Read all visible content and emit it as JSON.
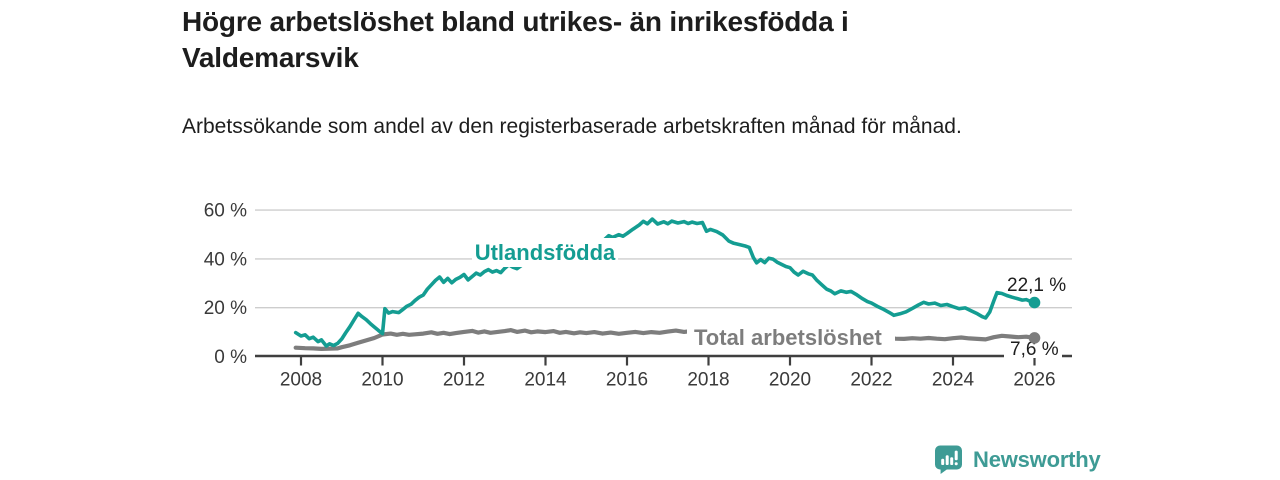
{
  "header": {
    "title": "Högre arbetslöshet bland utrikes- än inrikesfödda i Valdemarsvik",
    "subtitle": "Arbetssökande som andel av den registerbaserade arbetskraften månad för månad."
  },
  "footer": {
    "brand": "Newsworthy"
  },
  "colors": {
    "line_teal": "#149D92",
    "line_gray": "#7D7D7D",
    "grid": "#CDCDCD",
    "axis": "#3F3F3F",
    "tick_text": "#3A3A3A",
    "value_text": "#1D1D1D",
    "logo_teal": "#3E9B95",
    "background": "#FFFFFF"
  },
  "chart_data": {
    "type": "line",
    "title": "Högre arbetslöshet bland utrikes- än inrikesfödda i Valdemarsvik",
    "subtitle": "Arbetssökande som andel av den registerbaserade arbetskraften månad för månad.",
    "xlabel": "",
    "ylabel": "",
    "grid": "horizontal",
    "legend_position": "inline",
    "x_axis": {
      "ticks": [
        "2008",
        "2010",
        "2012",
        "2014",
        "2016",
        "2018",
        "2020",
        "2022",
        "2024",
        "2026"
      ],
      "range": [
        2006.9,
        2026.9
      ]
    },
    "y_axis": {
      "range": [
        0,
        60
      ],
      "unit": "%",
      "ticks": [
        {
          "value": 0,
          "label": "0 %"
        },
        {
          "value": 20,
          "label": "20 %"
        },
        {
          "value": 40,
          "label": "40 %"
        },
        {
          "value": 60,
          "label": "60 %"
        }
      ]
    },
    "series": [
      {
        "id": "utlandsfodda",
        "name": "Utlandsfödda",
        "color": "#149D92",
        "end_label": "22,1 %",
        "end_value": 22.1,
        "points": [
          [
            2007.87,
            9.8
          ],
          [
            2008.0,
            8.4
          ],
          [
            2008.1,
            8.9
          ],
          [
            2008.2,
            7.3
          ],
          [
            2008.3,
            7.9
          ],
          [
            2008.42,
            6.1
          ],
          [
            2008.5,
            6.8
          ],
          [
            2008.62,
            4.3
          ],
          [
            2008.7,
            5.2
          ],
          [
            2008.8,
            4.5
          ],
          [
            2008.9,
            5.4
          ],
          [
            2009.0,
            7.2
          ],
          [
            2009.1,
            9.8
          ],
          [
            2009.2,
            12.2
          ],
          [
            2009.3,
            15.0
          ],
          [
            2009.4,
            17.7
          ],
          [
            2009.5,
            16.3
          ],
          [
            2009.6,
            15.1
          ],
          [
            2009.7,
            13.5
          ],
          [
            2009.8,
            12.1
          ],
          [
            2009.9,
            10.7
          ],
          [
            2010.0,
            9.4
          ],
          [
            2010.06,
            19.6
          ],
          [
            2010.15,
            17.8
          ],
          [
            2010.25,
            18.4
          ],
          [
            2010.4,
            18.0
          ],
          [
            2010.5,
            19.3
          ],
          [
            2010.6,
            20.6
          ],
          [
            2010.7,
            21.4
          ],
          [
            2010.8,
            23.0
          ],
          [
            2010.9,
            24.3
          ],
          [
            2011.0,
            25.2
          ],
          [
            2011.1,
            27.6
          ],
          [
            2011.2,
            29.4
          ],
          [
            2011.3,
            31.2
          ],
          [
            2011.4,
            32.6
          ],
          [
            2011.5,
            30.4
          ],
          [
            2011.6,
            32.0
          ],
          [
            2011.7,
            30.2
          ],
          [
            2011.8,
            31.6
          ],
          [
            2011.9,
            32.4
          ],
          [
            2012.0,
            33.6
          ],
          [
            2012.1,
            31.4
          ],
          [
            2012.2,
            32.8
          ],
          [
            2012.3,
            34.2
          ],
          [
            2012.4,
            33.4
          ],
          [
            2012.5,
            34.8
          ],
          [
            2012.6,
            35.6
          ],
          [
            2012.7,
            34.6
          ],
          [
            2012.8,
            35.2
          ],
          [
            2012.9,
            34.4
          ],
          [
            2013.0,
            36.2
          ],
          [
            2013.1,
            37.6
          ],
          [
            2013.2,
            36.6
          ],
          [
            2013.3,
            36.0
          ],
          [
            2013.45,
            37.8
          ],
          [
            2013.6,
            38.5
          ],
          [
            2013.8,
            39.3
          ],
          [
            2014.0,
            40.3
          ],
          [
            2014.25,
            41.7
          ],
          [
            2014.5,
            43.1
          ],
          [
            2014.75,
            44.3
          ],
          [
            2015.0,
            45.3
          ],
          [
            2015.2,
            46.3
          ],
          [
            2015.4,
            47.2
          ],
          [
            2015.55,
            49.5
          ],
          [
            2015.65,
            48.8
          ],
          [
            2015.8,
            49.9
          ],
          [
            2015.9,
            49.3
          ],
          [
            2016.0,
            50.4
          ],
          [
            2016.15,
            52.2
          ],
          [
            2016.3,
            53.9
          ],
          [
            2016.4,
            55.4
          ],
          [
            2016.5,
            54.4
          ],
          [
            2016.62,
            56.3
          ],
          [
            2016.75,
            54.3
          ],
          [
            2016.9,
            55.2
          ],
          [
            2017.0,
            54.4
          ],
          [
            2017.1,
            55.5
          ],
          [
            2017.25,
            54.7
          ],
          [
            2017.4,
            55.3
          ],
          [
            2017.5,
            54.5
          ],
          [
            2017.6,
            55.1
          ],
          [
            2017.72,
            54.5
          ],
          [
            2017.85,
            54.9
          ],
          [
            2017.95,
            51.3
          ],
          [
            2018.05,
            52.1
          ],
          [
            2018.2,
            51.2
          ],
          [
            2018.35,
            49.8
          ],
          [
            2018.5,
            47.3
          ],
          [
            2018.62,
            46.4
          ],
          [
            2018.75,
            45.9
          ],
          [
            2018.9,
            45.3
          ],
          [
            2019.0,
            44.7
          ],
          [
            2019.1,
            40.6
          ],
          [
            2019.18,
            38.4
          ],
          [
            2019.28,
            39.7
          ],
          [
            2019.38,
            38.5
          ],
          [
            2019.48,
            40.3
          ],
          [
            2019.58,
            39.9
          ],
          [
            2019.68,
            38.7
          ],
          [
            2019.8,
            37.7
          ],
          [
            2019.9,
            36.9
          ],
          [
            2020.0,
            36.4
          ],
          [
            2020.1,
            34.6
          ],
          [
            2020.2,
            33.4
          ],
          [
            2020.32,
            34.9
          ],
          [
            2020.45,
            33.9
          ],
          [
            2020.55,
            33.4
          ],
          [
            2020.65,
            31.4
          ],
          [
            2020.78,
            29.4
          ],
          [
            2020.9,
            27.6
          ],
          [
            2021.0,
            26.9
          ],
          [
            2021.1,
            25.7
          ],
          [
            2021.25,
            26.9
          ],
          [
            2021.38,
            26.3
          ],
          [
            2021.5,
            26.7
          ],
          [
            2021.62,
            25.5
          ],
          [
            2021.78,
            23.7
          ],
          [
            2021.9,
            22.5
          ],
          [
            2022.0,
            21.9
          ],
          [
            2022.15,
            20.5
          ],
          [
            2022.3,
            19.3
          ],
          [
            2022.45,
            17.9
          ],
          [
            2022.55,
            16.9
          ],
          [
            2022.7,
            17.5
          ],
          [
            2022.85,
            18.3
          ],
          [
            2023.0,
            19.7
          ],
          [
            2023.15,
            21.1
          ],
          [
            2023.28,
            22.2
          ],
          [
            2023.4,
            21.5
          ],
          [
            2023.55,
            21.9
          ],
          [
            2023.7,
            20.9
          ],
          [
            2023.85,
            21.3
          ],
          [
            2024.0,
            20.4
          ],
          [
            2024.15,
            19.6
          ],
          [
            2024.3,
            19.9
          ],
          [
            2024.45,
            18.7
          ],
          [
            2024.6,
            17.5
          ],
          [
            2024.72,
            16.3
          ],
          [
            2024.8,
            15.8
          ],
          [
            2024.9,
            18.2
          ],
          [
            2025.0,
            22.8
          ],
          [
            2025.08,
            26.2
          ],
          [
            2025.2,
            25.8
          ],
          [
            2025.32,
            25.0
          ],
          [
            2025.45,
            24.3
          ],
          [
            2025.6,
            23.6
          ],
          [
            2025.7,
            23.1
          ],
          [
            2025.8,
            23.3
          ],
          [
            2025.9,
            22.6
          ],
          [
            2026.0,
            22.1
          ]
        ]
      },
      {
        "id": "total-arbetsloshet",
        "name": "Total arbetslöshet",
        "color": "#7D7D7D",
        "end_label": "7,6 %",
        "end_value": 7.6,
        "points": [
          [
            2007.87,
            3.6
          ],
          [
            2008.1,
            3.4
          ],
          [
            2008.3,
            3.3
          ],
          [
            2008.5,
            3.1
          ],
          [
            2008.7,
            3.2
          ],
          [
            2008.9,
            3.3
          ],
          [
            2009.0,
            3.8
          ],
          [
            2009.2,
            4.6
          ],
          [
            2009.4,
            5.6
          ],
          [
            2009.6,
            6.6
          ],
          [
            2009.8,
            7.6
          ],
          [
            2010.0,
            9.0
          ],
          [
            2010.2,
            9.4
          ],
          [
            2010.35,
            8.9
          ],
          [
            2010.5,
            9.3
          ],
          [
            2010.65,
            8.9
          ],
          [
            2010.8,
            9.1
          ],
          [
            2011.0,
            9.4
          ],
          [
            2011.2,
            9.9
          ],
          [
            2011.35,
            9.3
          ],
          [
            2011.5,
            9.7
          ],
          [
            2011.65,
            9.2
          ],
          [
            2011.8,
            9.6
          ],
          [
            2012.0,
            10.1
          ],
          [
            2012.2,
            10.5
          ],
          [
            2012.35,
            9.8
          ],
          [
            2012.5,
            10.3
          ],
          [
            2012.65,
            9.7
          ],
          [
            2012.8,
            10.0
          ],
          [
            2013.0,
            10.4
          ],
          [
            2013.15,
            10.8
          ],
          [
            2013.3,
            10.1
          ],
          [
            2013.5,
            10.6
          ],
          [
            2013.65,
            9.9
          ],
          [
            2013.8,
            10.3
          ],
          [
            2014.0,
            10.0
          ],
          [
            2014.2,
            10.4
          ],
          [
            2014.35,
            9.7
          ],
          [
            2014.5,
            10.1
          ],
          [
            2014.7,
            9.5
          ],
          [
            2014.85,
            9.9
          ],
          [
            2015.0,
            9.6
          ],
          [
            2015.2,
            10.0
          ],
          [
            2015.4,
            9.4
          ],
          [
            2015.6,
            9.8
          ],
          [
            2015.8,
            9.3
          ],
          [
            2016.0,
            9.7
          ],
          [
            2016.2,
            10.1
          ],
          [
            2016.4,
            9.6
          ],
          [
            2016.6,
            10.0
          ],
          [
            2016.8,
            9.7
          ],
          [
            2017.0,
            10.2
          ],
          [
            2017.2,
            10.6
          ],
          [
            2017.4,
            10.1
          ],
          [
            2017.6,
            10.5
          ],
          [
            2017.8,
            10.0
          ],
          [
            2018.0,
            10.4
          ],
          [
            2018.2,
            9.8
          ],
          [
            2018.4,
            10.2
          ],
          [
            2018.6,
            9.6
          ],
          [
            2018.8,
            9.3
          ],
          [
            2019.0,
            9.7
          ],
          [
            2019.2,
            10.0
          ],
          [
            2019.4,
            9.5
          ],
          [
            2019.6,
            9.8
          ],
          [
            2019.8,
            9.2
          ],
          [
            2020.0,
            9.5
          ],
          [
            2020.2,
            9.9
          ],
          [
            2020.4,
            9.4
          ],
          [
            2020.6,
            9.7
          ],
          [
            2020.8,
            9.1
          ],
          [
            2021.0,
            9.4
          ],
          [
            2021.2,
            9.7
          ],
          [
            2021.4,
            9.2
          ],
          [
            2021.6,
            9.0
          ],
          [
            2021.8,
            8.6
          ],
          [
            2022.0,
            8.2
          ],
          [
            2022.2,
            7.8
          ],
          [
            2022.4,
            7.5
          ],
          [
            2022.6,
            7.3
          ],
          [
            2022.8,
            7.2
          ],
          [
            2023.0,
            7.5
          ],
          [
            2023.2,
            7.3
          ],
          [
            2023.4,
            7.6
          ],
          [
            2023.6,
            7.3
          ],
          [
            2023.8,
            7.1
          ],
          [
            2024.0,
            7.5
          ],
          [
            2024.2,
            7.8
          ],
          [
            2024.4,
            7.4
          ],
          [
            2024.6,
            7.2
          ],
          [
            2024.8,
            7.0
          ],
          [
            2025.0,
            7.9
          ],
          [
            2025.2,
            8.5
          ],
          [
            2025.4,
            8.2
          ],
          [
            2025.6,
            7.9
          ],
          [
            2025.8,
            8.1
          ],
          [
            2026.0,
            7.6
          ]
        ]
      }
    ]
  }
}
